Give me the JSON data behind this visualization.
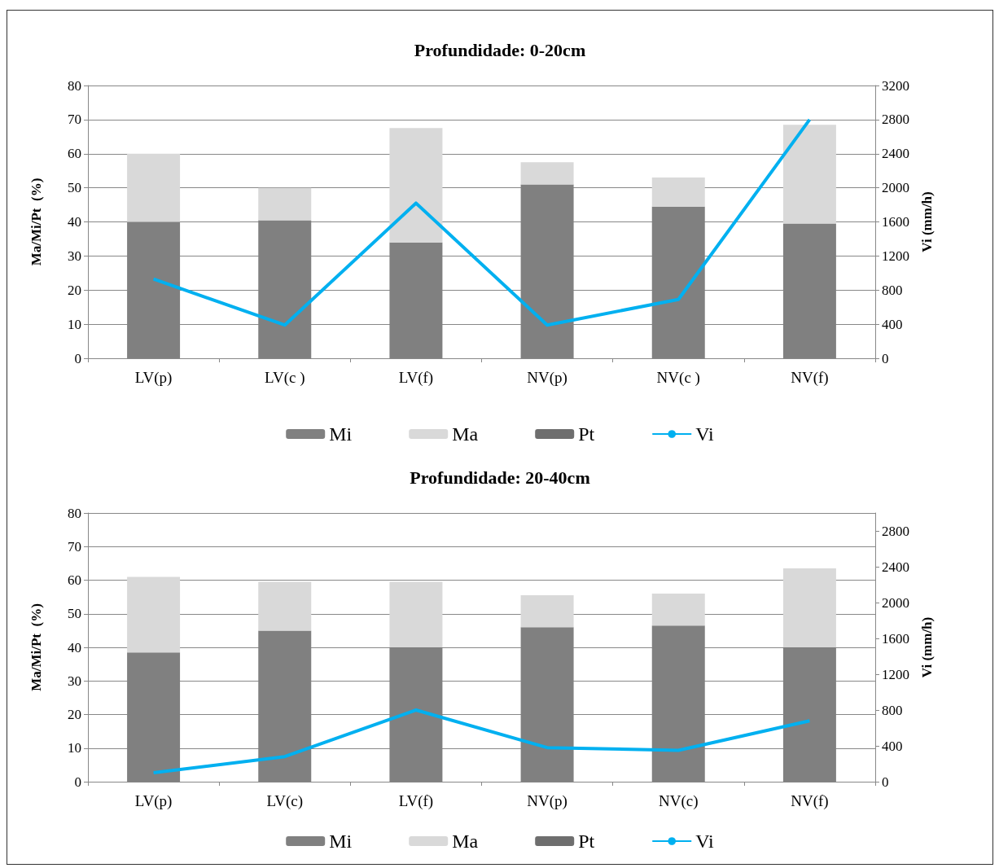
{
  "chart_data": [
    {
      "type": "bar",
      "title": "Profundidade: 0-20cm",
      "ylabel": "Ma/Mi/Pt  (%)",
      "y2label": "Vi (mm/h)",
      "categories": [
        "LV(p)",
        "LV(c )",
        "LV(f)",
        "NV(p)",
        "NV(c )",
        "NV(f)"
      ],
      "stacked": true,
      "ylim": [
        0,
        80
      ],
      "yticks": [
        0,
        10,
        20,
        30,
        40,
        50,
        60,
        70,
        80
      ],
      "y2lim": [
        0,
        3200
      ],
      "y2ticks": [
        0,
        400,
        800,
        1200,
        1600,
        2000,
        2400,
        2800,
        3200
      ],
      "grid": "y",
      "legend": "bottom",
      "series": [
        {
          "name": "Mi",
          "color": "#808080",
          "values": [
            40,
            40.5,
            34,
            51,
            44.5,
            39.5
          ]
        },
        {
          "name": "Ma",
          "color": "#d9d9d9",
          "values": [
            20,
            9.5,
            33.5,
            6.5,
            8.5,
            29
          ]
        },
        {
          "name": "Pt",
          "color": "#6e6e6e",
          "values": [
            null,
            null,
            null,
            null,
            null,
            null
          ]
        },
        {
          "name": "Vi",
          "type": "line",
          "axis": "y2",
          "color": "#00b0f0",
          "values": [
            930,
            390,
            1820,
            390,
            690,
            2800
          ]
        }
      ]
    },
    {
      "type": "bar",
      "title": "Profundidade: 20-40cm",
      "ylabel": "Ma/Mi/Pt  (%)",
      "y2label": "Vi (mm/h)",
      "categories": [
        "LV(p)",
        "LV(c)",
        "LV(f)",
        "NV(p)",
        "NV(c)",
        "NV(f)"
      ],
      "stacked": true,
      "ylim": [
        0,
        80
      ],
      "yticks": [
        0,
        10,
        20,
        30,
        40,
        50,
        60,
        70,
        80
      ],
      "y2lim": [
        0,
        3000
      ],
      "y2ticks": [
        0,
        400,
        800,
        1200,
        1600,
        2000,
        2400,
        2800
      ],
      "grid": "y",
      "legend": "bottom",
      "series": [
        {
          "name": "Mi",
          "color": "#808080",
          "values": [
            38.5,
            45,
            40,
            46,
            46.5,
            40
          ]
        },
        {
          "name": "Ma",
          "color": "#d9d9d9",
          "values": [
            22.5,
            14.5,
            19.5,
            9.5,
            9.5,
            23.5
          ]
        },
        {
          "name": "Pt",
          "color": "#6e6e6e",
          "values": [
            null,
            null,
            null,
            null,
            null,
            null
          ]
        },
        {
          "name": "Vi",
          "type": "line",
          "axis": "y2",
          "color": "#00b0f0",
          "values": [
            100,
            280,
            800,
            380,
            350,
            680
          ]
        }
      ]
    }
  ]
}
